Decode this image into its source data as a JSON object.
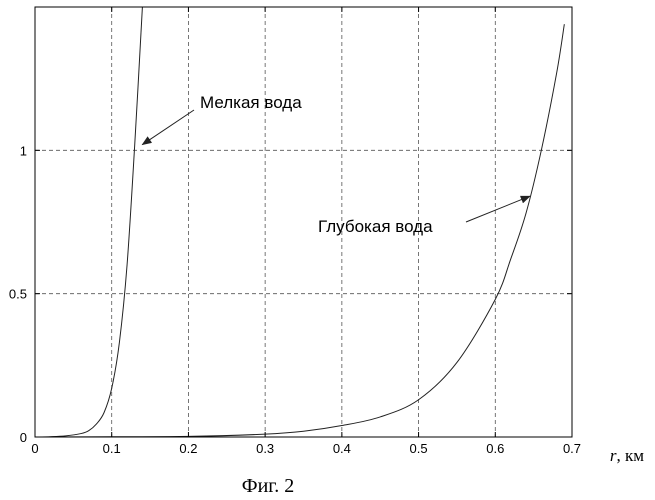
{
  "chart_data": {
    "type": "line",
    "title": "",
    "xlabel_var": "r",
    "xlabel_unit": ", км",
    "ylabel": "",
    "xlim": [
      0,
      0.7
    ],
    "ylim": [
      0,
      1.5
    ],
    "grid": true,
    "x_ticks": [
      "0",
      "0.1",
      "0.2",
      "0.3",
      "0.4",
      "0.5",
      "0.6",
      "0.7"
    ],
    "y_ticks": [
      "0",
      "0.5",
      "1"
    ],
    "series": [
      {
        "x": [
          0,
          0.02,
          0.04,
          0.06,
          0.07,
          0.08,
          0.09,
          0.1,
          0.11,
          0.12,
          0.13,
          0.14
        ],
        "y": [
          0.0,
          0.001,
          0.004,
          0.012,
          0.022,
          0.045,
          0.085,
          0.17,
          0.33,
          0.6,
          1.02,
          1.5
        ]
      },
      {
        "x": [
          0,
          0.1,
          0.2,
          0.3,
          0.35,
          0.4,
          0.45,
          0.5,
          0.55,
          0.6,
          0.62,
          0.64,
          0.66,
          0.68,
          0.69
        ],
        "y": [
          0.0,
          0.001,
          0.002,
          0.01,
          0.02,
          0.04,
          0.07,
          0.13,
          0.26,
          0.48,
          0.62,
          0.78,
          1.0,
          1.27,
          1.44
        ]
      }
    ],
    "annotations": [
      {
        "text": "Мелкая вода",
        "point": [
          0.14,
          1.02
        ]
      },
      {
        "text": "Глубокая вода",
        "point": [
          0.645,
          0.84
        ]
      }
    ],
    "caption": "Фиг. 2"
  }
}
